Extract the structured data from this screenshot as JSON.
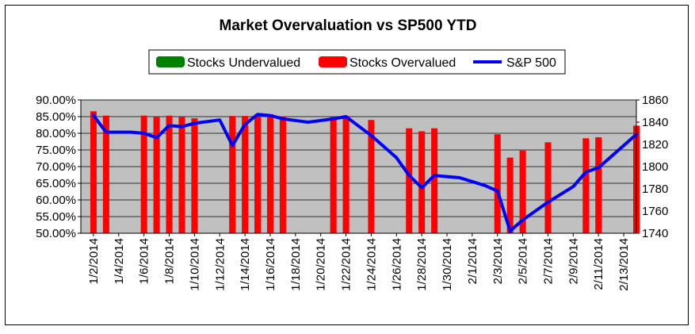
{
  "chart_data": {
    "type": "bar",
    "title": "Market Overvaluation vs SP500 YTD",
    "legend": {
      "placement": "top",
      "items": [
        {
          "label": "Stocks Undervalued",
          "color": "#008000",
          "kind": "bar"
        },
        {
          "label": "Stocks Overvalued",
          "color": "#ff0000",
          "kind": "bar"
        },
        {
          "label": "S&P 500",
          "color": "#0000ff",
          "kind": "line"
        }
      ]
    },
    "x_tick_labels": [
      "1/2/2014",
      "1/4/2014",
      "1/6/2014",
      "1/8/2014",
      "1/10/2014",
      "1/12/2014",
      "1/14/2014",
      "1/16/2014",
      "1/18/2014",
      "1/20/2014",
      "1/22/2014",
      "1/24/2014",
      "1/26/2014",
      "1/28/2014",
      "1/30/2014",
      "2/1/2014",
      "2/3/2014",
      "2/5/2014",
      "2/7/2014",
      "2/9/2014",
      "2/11/2014",
      "2/13/2014"
    ],
    "x_range": [
      "2014-01-01",
      "2014-02-14"
    ],
    "y_left": {
      "ylim": [
        0.5,
        0.9
      ],
      "ticks": [
        "50.00%",
        "55.00%",
        "60.00%",
        "65.00%",
        "70.00%",
        "75.00%",
        "80.00%",
        "85.00%",
        "90.00%"
      ]
    },
    "y_right": {
      "ylim": [
        1740,
        1860
      ],
      "ticks": [
        "1740",
        "1760",
        "1780",
        "1800",
        "1820",
        "1840",
        "1860"
      ]
    },
    "grid": true,
    "plot_background": "#c0c0c0",
    "series": [
      {
        "name": "Stocks Overvalued",
        "axis": "left",
        "color": "#ff0000",
        "x": [
          "2014-01-02",
          "2014-01-03",
          "2014-01-06",
          "2014-01-07",
          "2014-01-08",
          "2014-01-09",
          "2014-01-10",
          "2014-01-13",
          "2014-01-14",
          "2014-01-15",
          "2014-01-16",
          "2014-01-17",
          "2014-01-21",
          "2014-01-22",
          "2014-01-24",
          "2014-01-27",
          "2014-01-28",
          "2014-01-29",
          "2014-02-03",
          "2014-02-04",
          "2014-02-05",
          "2014-02-07",
          "2014-02-10",
          "2014-02-11",
          "2014-02-14"
        ],
        "values": [
          0.866,
          0.853,
          0.853,
          0.85,
          0.853,
          0.85,
          0.845,
          0.852,
          0.852,
          0.85,
          0.857,
          0.851,
          0.85,
          0.852,
          0.84,
          0.815,
          0.806,
          0.815,
          0.797,
          0.727,
          0.748,
          0.773,
          0.785,
          0.788,
          0.823
        ]
      },
      {
        "name": "S&P 500",
        "axis": "right",
        "color": "#0000ff",
        "type": "line",
        "x": [
          "2014-01-02",
          "2014-01-03",
          "2014-01-05",
          "2014-01-06",
          "2014-01-07",
          "2014-01-08",
          "2014-01-09",
          "2014-01-10",
          "2014-01-12",
          "2014-01-13",
          "2014-01-14",
          "2014-01-15",
          "2014-01-16",
          "2014-01-17",
          "2014-01-19",
          "2014-01-21",
          "2014-01-22",
          "2014-01-24",
          "2014-01-26",
          "2014-01-27",
          "2014-01-28",
          "2014-01-29",
          "2014-01-31",
          "2014-02-02",
          "2014-02-03",
          "2014-02-04",
          "2014-02-05",
          "2014-02-07",
          "2014-02-09",
          "2014-02-10",
          "2014-02-11",
          "2014-02-13",
          "2014-02-14"
        ],
        "values": [
          1846,
          1831,
          1831,
          1830,
          1826,
          1837,
          1836,
          1839,
          1842,
          1819,
          1838,
          1847,
          1846,
          1843,
          1840,
          1843,
          1845,
          1828,
          1808,
          1792,
          1781,
          1792,
          1790,
          1783,
          1778,
          1742,
          1752,
          1768,
          1782,
          1795,
          1799,
          1819,
          1829
        ]
      }
    ]
  }
}
